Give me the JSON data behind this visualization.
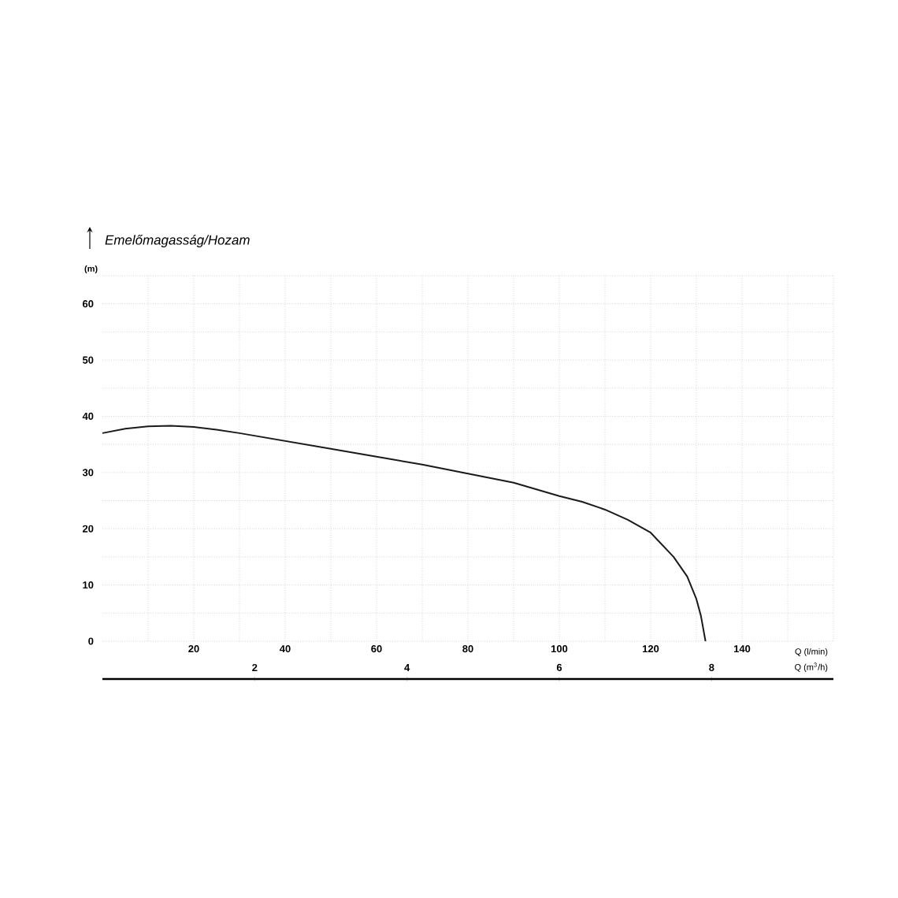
{
  "chart_data": {
    "type": "line",
    "ylabel": "Emelőmagasság/Hozam",
    "xlabel": "Q (l/min)",
    "x2label": "Q (m$^{3}$/h)",
    "annotations": [
      "(m)"
    ],
    "xlim": [
      0,
      160
    ],
    "ylim": [
      0,
      65
    ],
    "xticks": [
      {
        "value": 10,
        "label": null
      },
      20,
      {
        "value": 30,
        "label": null
      },
      40,
      {
        "value": 50,
        "label": null
      },
      60,
      {
        "value": 70,
        "label": null
      },
      80,
      {
        "value": 90,
        "label": null
      },
      100,
      {
        "value": 110,
        "label": null
      },
      120,
      {
        "value": 130,
        "label": null
      },
      140,
      {
        "value": 150,
        "label": null
      },
      {
        "value": 160,
        "label": null
      }
    ],
    "yticks": [
      0,
      {
        "value": 5,
        "label": null
      },
      10,
      {
        "value": 15,
        "label": null
      },
      20,
      {
        "value": 25,
        "label": null
      },
      30,
      {
        "value": 35,
        "label": null
      },
      40,
      {
        "value": 45,
        "label": null
      },
      50,
      {
        "value": 55,
        "label": null
      },
      60,
      {
        "value": 65,
        "label": null
      }
    ],
    "x2lim": [
      0,
      9.6
    ],
    "x2ticks": [
      2,
      4,
      6,
      8
    ],
    "grid": true,
    "marker": "none",
    "line_style": "solid",
    "series": [
      {
        "color": "#1a1a1a",
        "x": [
          0,
          5,
          10,
          15,
          20,
          25,
          30,
          40,
          50,
          60,
          70,
          80,
          90,
          100,
          105,
          110,
          115,
          120,
          125,
          128,
          130,
          131,
          132
        ],
        "values": [
          37,
          37.8,
          38.2,
          38.3,
          38.1,
          37.6,
          37,
          35.6,
          34.2,
          32.8,
          31.4,
          29.8,
          28.2,
          25.8,
          24.8,
          23.4,
          21.6,
          19.3,
          15,
          11.5,
          7.5,
          4.5,
          0
        ]
      }
    ]
  }
}
